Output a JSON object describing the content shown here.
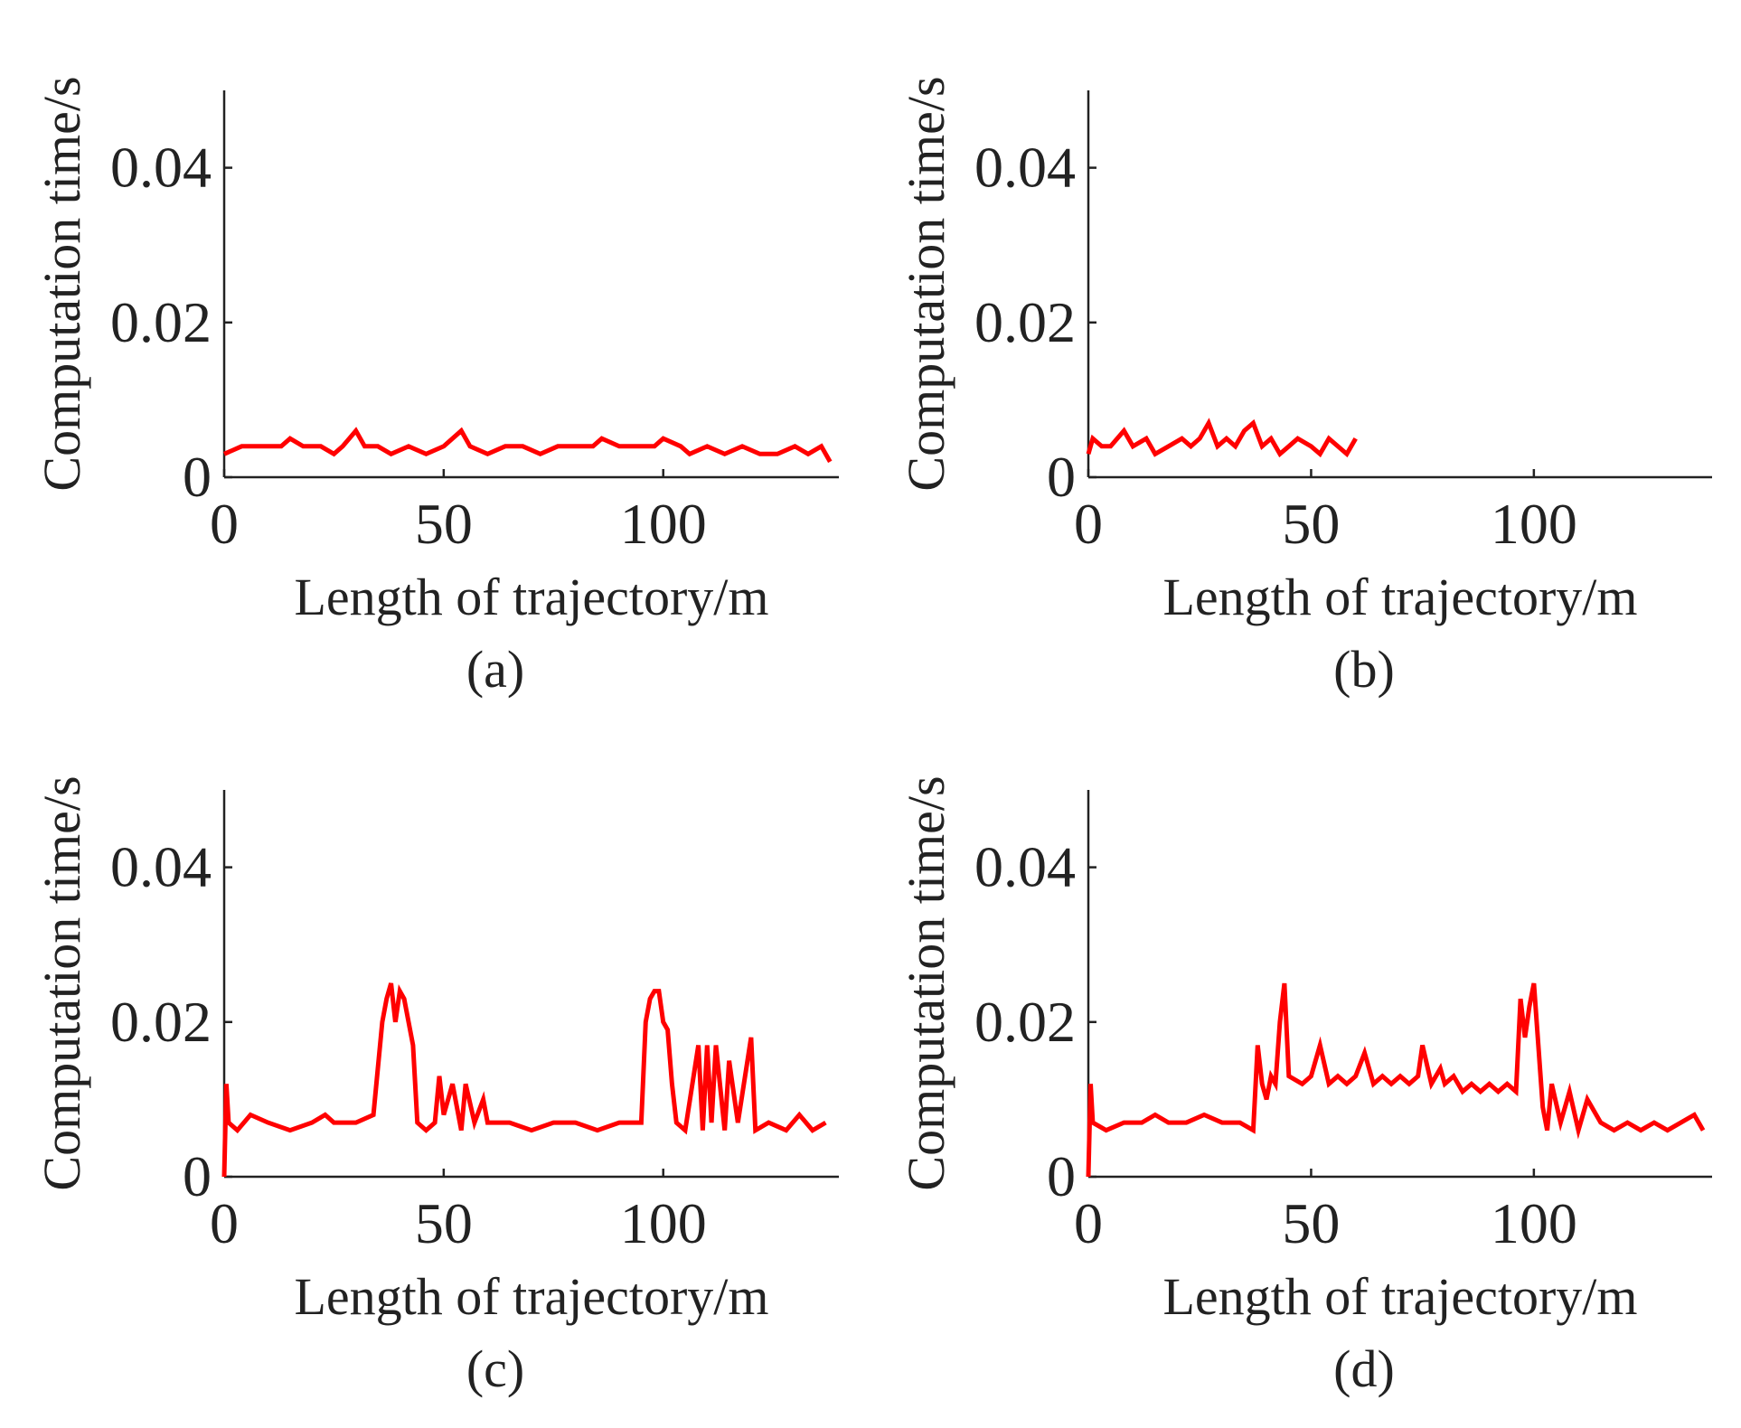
{
  "figure": {
    "line_color": "#ff0000",
    "axis_color": "#222222"
  },
  "chart_data": [
    {
      "type": "line",
      "caption": "(a)",
      "xlabel": "Length of trajectory/m",
      "ylabel": "Computation time/s",
      "xlim": [
        0,
        140
      ],
      "ylim": [
        0,
        0.05
      ],
      "xticks": [
        0,
        50,
        100
      ],
      "xtick_labels": [
        "0",
        "50",
        "100"
      ],
      "yticks": [
        0,
        0.02,
        0.04
      ],
      "ytick_labels": [
        "0",
        "0.02",
        "0.04"
      ],
      "series": [
        {
          "name": "computation time",
          "x": [
            0,
            4,
            8,
            13,
            15,
            18,
            22,
            25,
            27,
            30,
            32,
            35,
            38,
            42,
            46,
            50,
            54,
            56,
            60,
            64,
            68,
            72,
            76,
            80,
            84,
            86,
            90,
            94,
            98,
            100,
            104,
            106,
            110,
            114,
            118,
            122,
            126,
            130,
            133,
            136,
            138
          ],
          "y": [
            0.003,
            0.004,
            0.004,
            0.004,
            0.005,
            0.004,
            0.004,
            0.003,
            0.004,
            0.006,
            0.004,
            0.004,
            0.003,
            0.004,
            0.003,
            0.004,
            0.006,
            0.004,
            0.003,
            0.004,
            0.004,
            0.003,
            0.004,
            0.004,
            0.004,
            0.005,
            0.004,
            0.004,
            0.004,
            0.005,
            0.004,
            0.003,
            0.004,
            0.003,
            0.004,
            0.003,
            0.003,
            0.004,
            0.003,
            0.004,
            0.002
          ]
        }
      ]
    },
    {
      "type": "line",
      "caption": "(b)",
      "xlabel": "Length of trajectory/m",
      "ylabel": "Computation time/s",
      "xlim": [
        0,
        140
      ],
      "ylim": [
        0,
        0.05
      ],
      "xticks": [
        0,
        50,
        100
      ],
      "xtick_labels": [
        "0",
        "50",
        "100"
      ],
      "yticks": [
        0,
        0.02,
        0.04
      ],
      "ytick_labels": [
        "0",
        "0.02",
        "0.04"
      ],
      "series": [
        {
          "name": "computation time",
          "x": [
            0,
            1,
            3,
            5,
            8,
            10,
            13,
            15,
            18,
            21,
            23,
            25,
            27,
            29,
            31,
            33,
            35,
            37,
            39,
            41,
            43,
            45,
            47,
            50,
            52,
            54,
            56,
            58,
            60
          ],
          "y": [
            0.003,
            0.005,
            0.004,
            0.004,
            0.006,
            0.004,
            0.005,
            0.003,
            0.004,
            0.005,
            0.004,
            0.005,
            0.007,
            0.004,
            0.005,
            0.004,
            0.006,
            0.007,
            0.004,
            0.005,
            0.003,
            0.004,
            0.005,
            0.004,
            0.003,
            0.005,
            0.004,
            0.003,
            0.005
          ]
        }
      ]
    },
    {
      "type": "line",
      "caption": "(c)",
      "xlabel": "Length of trajectory/m",
      "ylabel": "Computation time/s",
      "xlim": [
        0,
        140
      ],
      "ylim": [
        0,
        0.05
      ],
      "xticks": [
        0,
        50,
        100
      ],
      "xtick_labels": [
        "0",
        "50",
        "100"
      ],
      "yticks": [
        0,
        0.02,
        0.04
      ],
      "ytick_labels": [
        "0",
        "0.02",
        "0.04"
      ],
      "series": [
        {
          "name": "computation time",
          "x": [
            0,
            0.5,
            1,
            3,
            6,
            10,
            15,
            20,
            23,
            25,
            30,
            34,
            36,
            37,
            38,
            39,
            40,
            41,
            42,
            43,
            44,
            46,
            48,
            49,
            50,
            52,
            54,
            55,
            57,
            59,
            60,
            65,
            70,
            75,
            80,
            85,
            90,
            95,
            96,
            97,
            98,
            99,
            100,
            101,
            102,
            103,
            105,
            108,
            109,
            110,
            111,
            112,
            114,
            115,
            117,
            120,
            121,
            124,
            128,
            131,
            134,
            137
          ],
          "y": [
            0,
            0.012,
            0.007,
            0.006,
            0.008,
            0.007,
            0.006,
            0.007,
            0.008,
            0.007,
            0.007,
            0.008,
            0.02,
            0.023,
            0.025,
            0.02,
            0.024,
            0.023,
            0.02,
            0.017,
            0.007,
            0.006,
            0.007,
            0.013,
            0.008,
            0.012,
            0.006,
            0.012,
            0.007,
            0.01,
            0.007,
            0.007,
            0.006,
            0.007,
            0.007,
            0.006,
            0.007,
            0.007,
            0.02,
            0.023,
            0.024,
            0.024,
            0.02,
            0.019,
            0.012,
            0.007,
            0.006,
            0.017,
            0.006,
            0.017,
            0.007,
            0.017,
            0.006,
            0.015,
            0.007,
            0.018,
            0.006,
            0.007,
            0.006,
            0.008,
            0.006,
            0.007
          ]
        }
      ]
    },
    {
      "type": "line",
      "caption": "(d)",
      "xlabel": "Length of trajectory/m",
      "ylabel": "Computation time/s",
      "xlim": [
        0,
        140
      ],
      "ylim": [
        0,
        0.05
      ],
      "xticks": [
        0,
        50,
        100
      ],
      "xtick_labels": [
        "0",
        "50",
        "100"
      ],
      "yticks": [
        0,
        0.02,
        0.04
      ],
      "ytick_labels": [
        "0",
        "0.02",
        "0.04"
      ],
      "series": [
        {
          "name": "computation time",
          "x": [
            0,
            0.5,
            1,
            4,
            8,
            12,
            15,
            18,
            22,
            26,
            30,
            34,
            37,
            38,
            39,
            40,
            41,
            42,
            43,
            44,
            45,
            48,
            50,
            52,
            54,
            56,
            58,
            60,
            62,
            64,
            66,
            68,
            70,
            72,
            74,
            75,
            77,
            79,
            80,
            82,
            84,
            86,
            88,
            90,
            92,
            94,
            96,
            97,
            98,
            99,
            100,
            101,
            102,
            103,
            104,
            106,
            108,
            110,
            112,
            115,
            118,
            121,
            124,
            127,
            130,
            133,
            136,
            138
          ],
          "y": [
            0,
            0.012,
            0.007,
            0.006,
            0.007,
            0.007,
            0.008,
            0.007,
            0.007,
            0.008,
            0.007,
            0.007,
            0.006,
            0.017,
            0.012,
            0.01,
            0.013,
            0.012,
            0.02,
            0.025,
            0.013,
            0.012,
            0.013,
            0.017,
            0.012,
            0.013,
            0.012,
            0.013,
            0.016,
            0.012,
            0.013,
            0.012,
            0.013,
            0.012,
            0.013,
            0.017,
            0.012,
            0.014,
            0.012,
            0.013,
            0.011,
            0.012,
            0.011,
            0.012,
            0.011,
            0.012,
            0.011,
            0.023,
            0.018,
            0.022,
            0.025,
            0.017,
            0.009,
            0.006,
            0.012,
            0.007,
            0.011,
            0.006,
            0.01,
            0.007,
            0.006,
            0.007,
            0.006,
            0.007,
            0.006,
            0.007,
            0.008,
            0.006
          ]
        }
      ]
    }
  ]
}
